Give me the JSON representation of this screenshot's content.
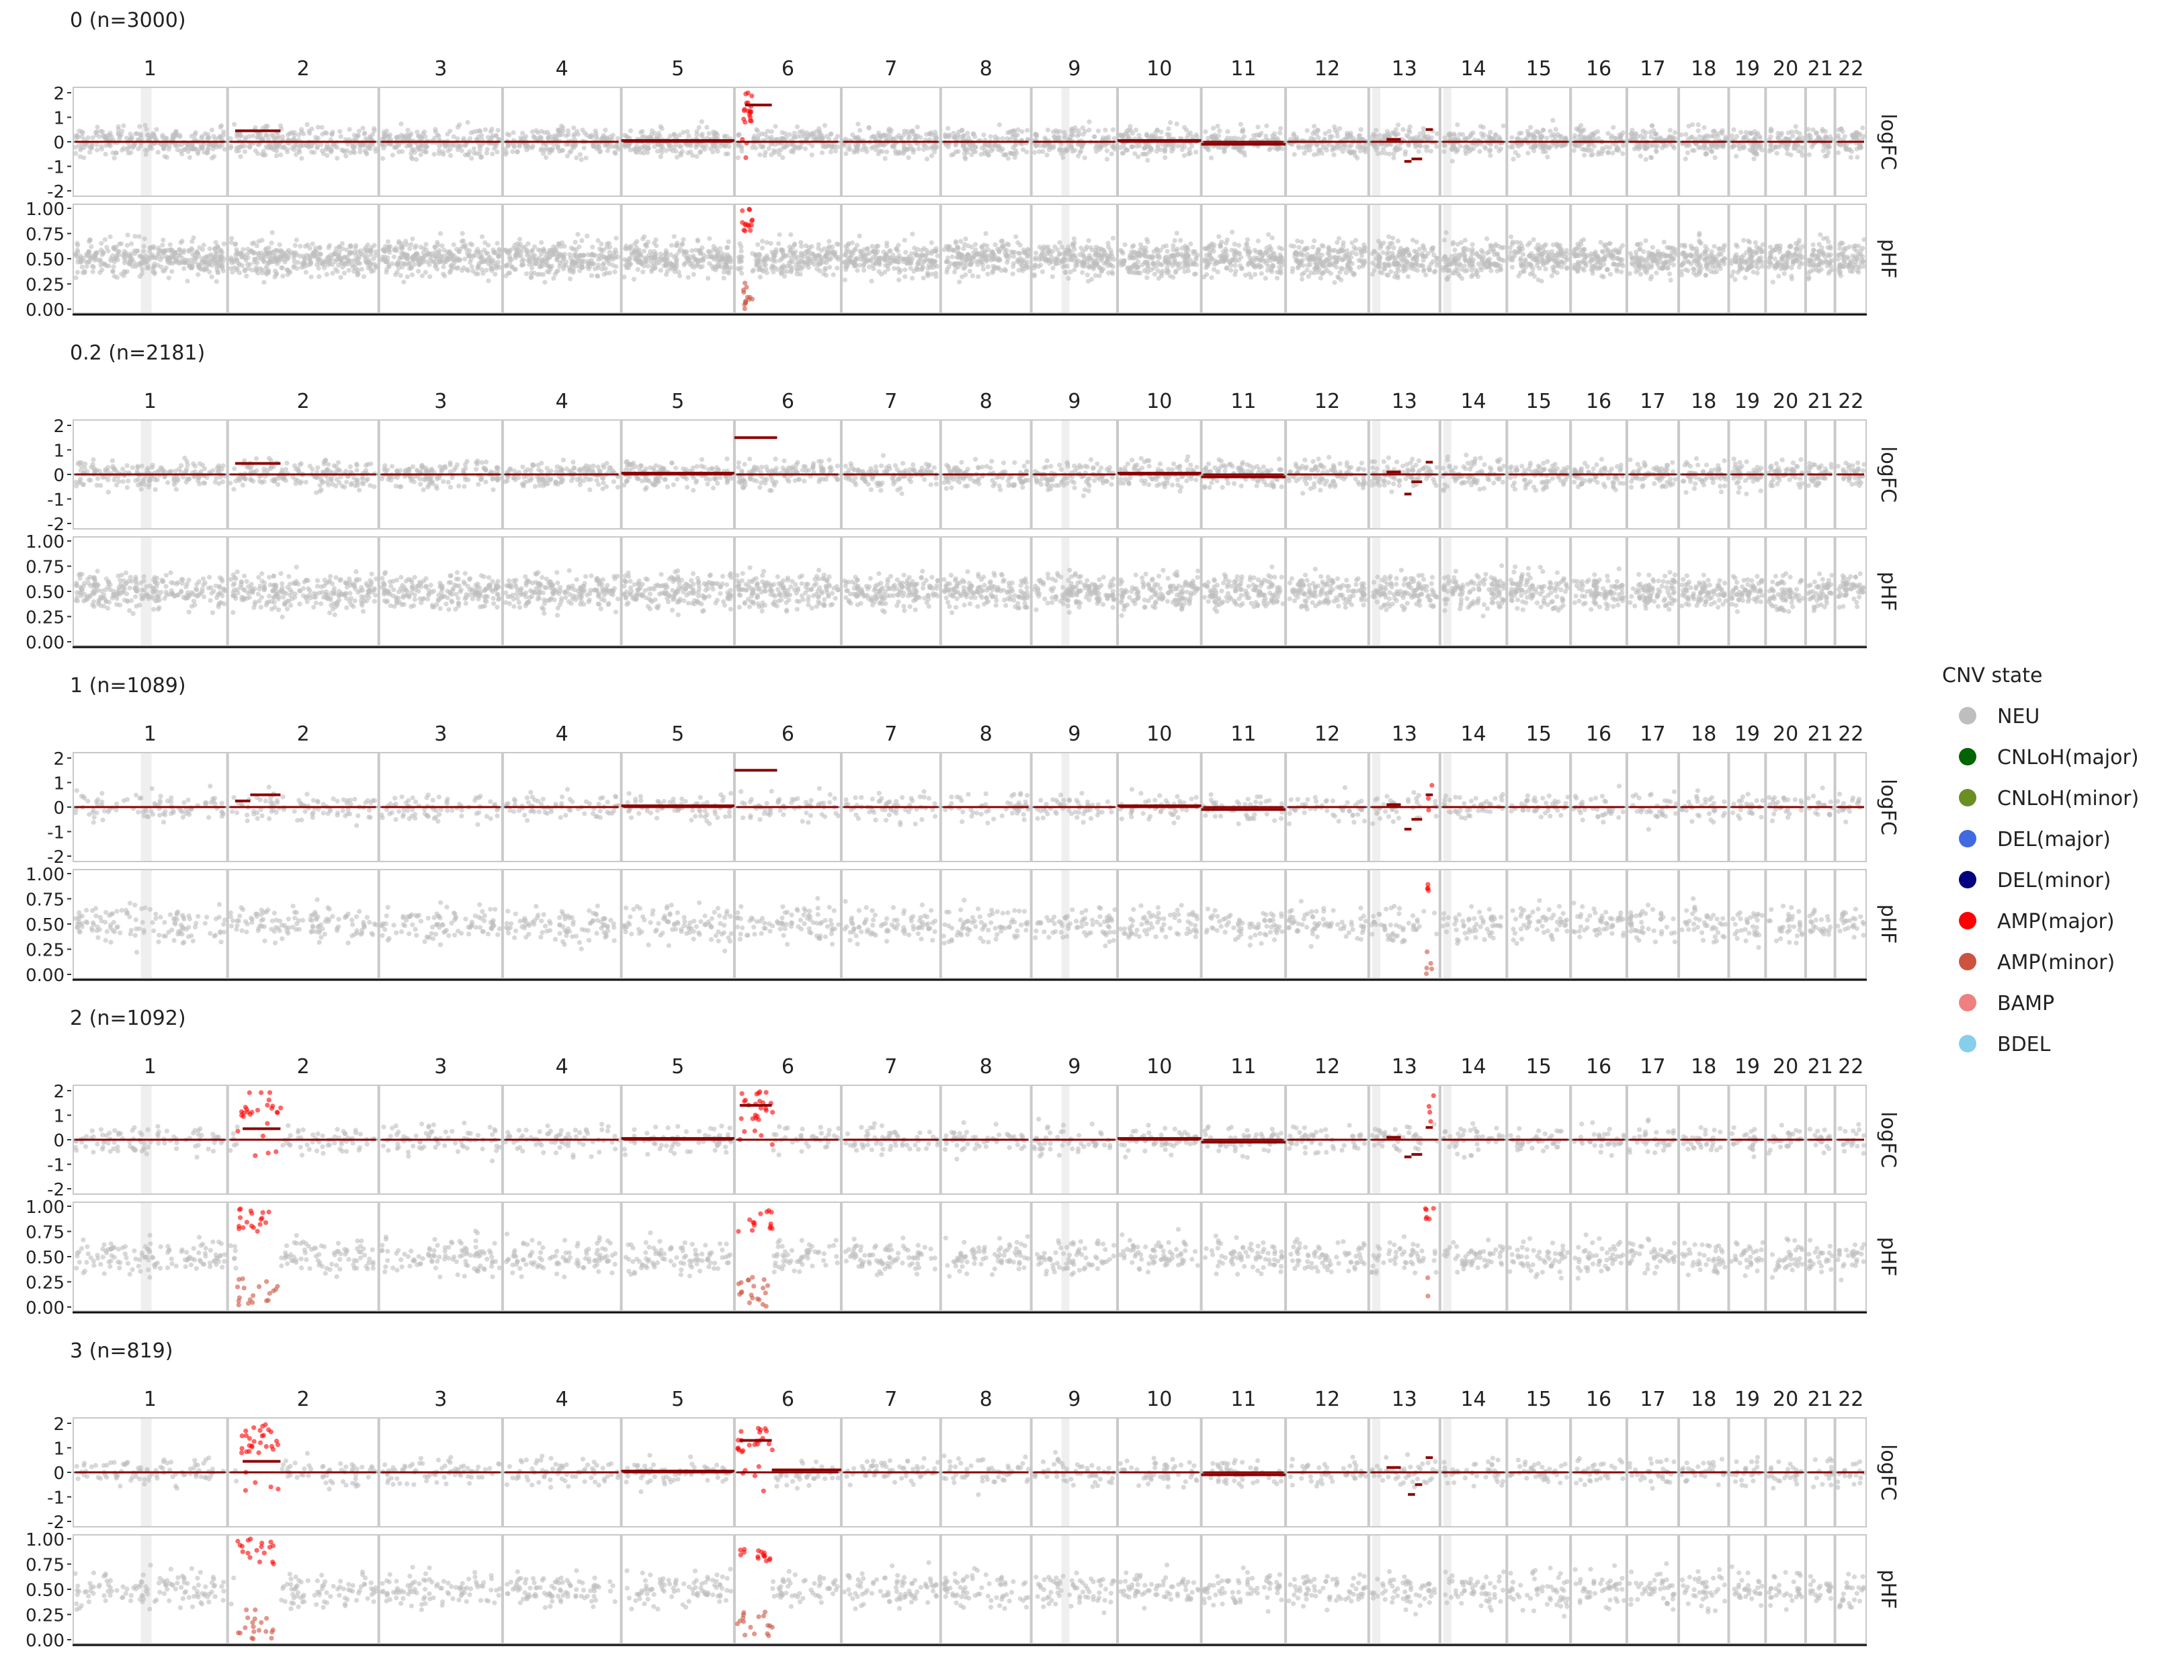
{
  "chart_data": {
    "type": "scatter",
    "chromosomes": [
      "1",
      "2",
      "3",
      "4",
      "5",
      "6",
      "7",
      "8",
      "9",
      "10",
      "11",
      "12",
      "13",
      "14",
      "15",
      "16",
      "17",
      "18",
      "19",
      "20",
      "21",
      "22"
    ],
    "chrom_relative_widths": [
      248,
      242,
      198,
      190,
      181,
      171,
      159,
      145,
      138,
      134,
      135,
      133,
      114,
      107,
      102,
      90,
      83,
      80,
      59,
      64,
      47,
      51
    ],
    "facet_labels": [
      "logFC",
      "pHF"
    ],
    "logfc_ylim": [
      -2,
      2
    ],
    "logfc_ticks": [
      "2",
      "1",
      "0",
      "-1",
      "-2"
    ],
    "phf_ylim": [
      0,
      1
    ],
    "phf_ticks": [
      "1.00",
      "0.75",
      "0.50",
      "0.25",
      "0.00"
    ],
    "legend": {
      "title": "CNV state",
      "placement": "right",
      "entries": [
        {
          "name": "NEU",
          "color": "#bebebe"
        },
        {
          "name": "CNLoH(major)",
          "color": "#006400"
        },
        {
          "name": "CNLoH(minor)",
          "color": "#6b8e23"
        },
        {
          "name": "DEL(major)",
          "color": "#4169e1"
        },
        {
          "name": "DEL(minor)",
          "color": "#000080"
        },
        {
          "name": "AMP(major)",
          "color": "#ff0000"
        },
        {
          "name": "AMP(minor)",
          "color": "#cd5340"
        },
        {
          "name": "BAMP",
          "color": "#f08080"
        },
        {
          "name": "BDEL",
          "color": "#87ceeb"
        }
      ]
    },
    "panels": [
      {
        "title": "0 (n=3000)",
        "segments": [
          {
            "chrom": "2",
            "start": 0.05,
            "end": 0.35,
            "logfc": 0.45
          },
          {
            "chrom": "5",
            "start": 0.0,
            "end": 1.0,
            "logfc": 0.05
          },
          {
            "chrom": "6",
            "start": 0.1,
            "end": 0.35,
            "logfc": 1.5
          },
          {
            "chrom": "10",
            "start": 0.0,
            "end": 1.0,
            "logfc": 0.05
          },
          {
            "chrom": "11",
            "start": 0.0,
            "end": 1.0,
            "logfc": -0.1
          },
          {
            "chrom": "13",
            "start": 0.25,
            "end": 0.45,
            "logfc": 0.1
          },
          {
            "chrom": "13",
            "start": 0.5,
            "end": 0.6,
            "logfc": -0.8
          },
          {
            "chrom": "13",
            "start": 0.6,
            "end": 0.75,
            "logfc": -0.7
          },
          {
            "chrom": "13",
            "start": 0.8,
            "end": 0.9,
            "logfc": 0.5
          }
        ],
        "highlights": [
          {
            "chrom": "6",
            "start": 0.05,
            "end": 0.15,
            "state": "AMP(major)"
          }
        ]
      },
      {
        "title": "0.2 (n=2181)",
        "segments": [
          {
            "chrom": "2",
            "start": 0.05,
            "end": 0.35,
            "logfc": 0.45
          },
          {
            "chrom": "5",
            "start": 0.0,
            "end": 1.0,
            "logfc": 0.05
          },
          {
            "chrom": "6",
            "start": 0.0,
            "end": 0.4,
            "logfc": 1.5
          },
          {
            "chrom": "10",
            "start": 0.0,
            "end": 1.0,
            "logfc": 0.05
          },
          {
            "chrom": "11",
            "start": 0.0,
            "end": 1.0,
            "logfc": -0.1
          },
          {
            "chrom": "13",
            "start": 0.25,
            "end": 0.45,
            "logfc": 0.1
          },
          {
            "chrom": "13",
            "start": 0.5,
            "end": 0.6,
            "logfc": -0.8
          },
          {
            "chrom": "13",
            "start": 0.6,
            "end": 0.75,
            "logfc": -0.3
          },
          {
            "chrom": "13",
            "start": 0.8,
            "end": 0.9,
            "logfc": 0.5
          }
        ],
        "highlights": []
      },
      {
        "title": "1 (n=1089)",
        "segments": [
          {
            "chrom": "2",
            "start": 0.05,
            "end": 0.15,
            "logfc": 0.25
          },
          {
            "chrom": "2",
            "start": 0.15,
            "end": 0.35,
            "logfc": 0.5
          },
          {
            "chrom": "5",
            "start": 0.0,
            "end": 1.0,
            "logfc": 0.05
          },
          {
            "chrom": "6",
            "start": 0.0,
            "end": 0.4,
            "logfc": 1.5
          },
          {
            "chrom": "10",
            "start": 0.0,
            "end": 1.0,
            "logfc": 0.05
          },
          {
            "chrom": "11",
            "start": 0.0,
            "end": 1.0,
            "logfc": -0.1
          },
          {
            "chrom": "13",
            "start": 0.25,
            "end": 0.45,
            "logfc": 0.1
          },
          {
            "chrom": "13",
            "start": 0.5,
            "end": 0.6,
            "logfc": -0.9
          },
          {
            "chrom": "13",
            "start": 0.6,
            "end": 0.75,
            "logfc": -0.5
          },
          {
            "chrom": "13",
            "start": 0.8,
            "end": 0.9,
            "logfc": 0.5
          }
        ],
        "highlights": [
          {
            "chrom": "13",
            "start": 0.8,
            "end": 0.95,
            "state": "AMP(major)"
          }
        ]
      },
      {
        "title": "2 (n=1092)",
        "segments": [
          {
            "chrom": "2",
            "start": 0.1,
            "end": 0.35,
            "logfc": 0.45
          },
          {
            "chrom": "5",
            "start": 0.0,
            "end": 1.0,
            "logfc": 0.05
          },
          {
            "chrom": "6",
            "start": 0.05,
            "end": 0.35,
            "logfc": 1.4
          },
          {
            "chrom": "10",
            "start": 0.0,
            "end": 1.0,
            "logfc": 0.05
          },
          {
            "chrom": "11",
            "start": 0.0,
            "end": 1.0,
            "logfc": -0.1
          },
          {
            "chrom": "13",
            "start": 0.25,
            "end": 0.45,
            "logfc": 0.1
          },
          {
            "chrom": "13",
            "start": 0.5,
            "end": 0.6,
            "logfc": -0.7
          },
          {
            "chrom": "13",
            "start": 0.6,
            "end": 0.75,
            "logfc": -0.6
          },
          {
            "chrom": "13",
            "start": 0.8,
            "end": 0.9,
            "logfc": 0.5
          }
        ],
        "highlights": [
          {
            "chrom": "2",
            "start": 0.05,
            "end": 0.35,
            "state": "AMP(major)"
          },
          {
            "chrom": "6",
            "start": 0.0,
            "end": 0.35,
            "state": "AMP(major)"
          },
          {
            "chrom": "13",
            "start": 0.8,
            "end": 0.95,
            "state": "AMP(major)"
          }
        ]
      },
      {
        "title": "3 (n=819)",
        "segments": [
          {
            "chrom": "2",
            "start": 0.1,
            "end": 0.35,
            "logfc": 0.45
          },
          {
            "chrom": "5",
            "start": 0.0,
            "end": 1.0,
            "logfc": 0.05
          },
          {
            "chrom": "6",
            "start": 0.05,
            "end": 0.35,
            "logfc": 1.3
          },
          {
            "chrom": "6",
            "start": 0.35,
            "end": 1.0,
            "logfc": 0.1
          },
          {
            "chrom": "11",
            "start": 0.0,
            "end": 1.0,
            "logfc": -0.1
          },
          {
            "chrom": "13",
            "start": 0.25,
            "end": 0.45,
            "logfc": 0.2
          },
          {
            "chrom": "13",
            "start": 0.55,
            "end": 0.65,
            "logfc": -0.9
          },
          {
            "chrom": "13",
            "start": 0.65,
            "end": 0.75,
            "logfc": -0.5
          },
          {
            "chrom": "13",
            "start": 0.8,
            "end": 0.9,
            "logfc": 0.6
          }
        ],
        "highlights": [
          {
            "chrom": "2",
            "start": 0.05,
            "end": 0.35,
            "state": "AMP(major)"
          },
          {
            "chrom": "6",
            "start": 0.0,
            "end": 0.35,
            "state": "AMP(major)"
          }
        ]
      }
    ]
  }
}
